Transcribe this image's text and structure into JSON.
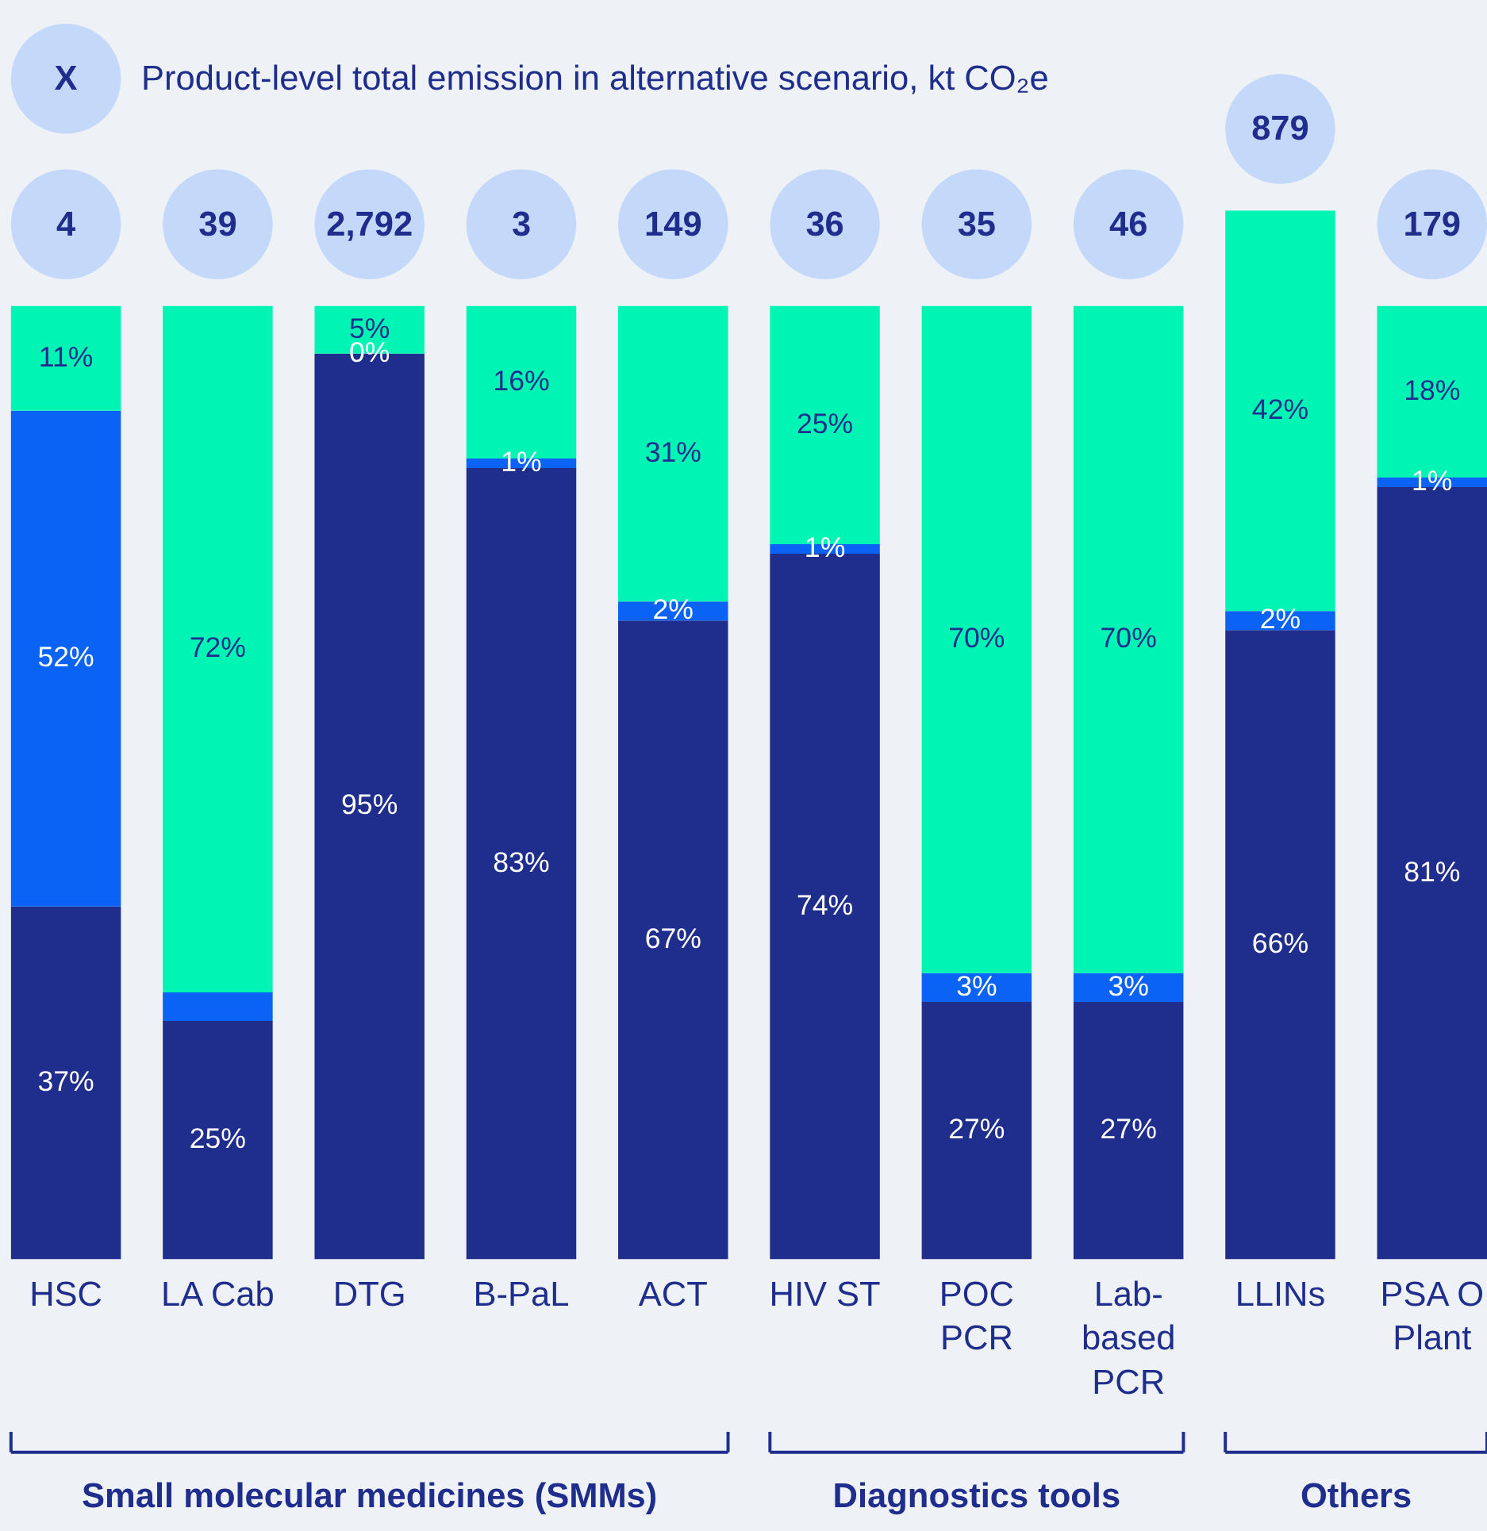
{
  "chart_data": {
    "type": "bar",
    "stacked": true,
    "categories": [
      "HSC",
      "LA Cab",
      "DTG",
      "B-PaL",
      "ACT",
      "HIV ST",
      "POC\nPCR",
      "Lab-\nbased\nPCR",
      "LLINs",
      "PSA O\nPlant"
    ],
    "series": [
      {
        "color": "#1f2d8c",
        "values": [
          37,
          25,
          95,
          83,
          67,
          74,
          27,
          27,
          66,
          81
        ],
        "value_labels": [
          "37%",
          "25%",
          "95%",
          "83%",
          "67%",
          "74%",
          "27%",
          "27%",
          "66%",
          "81%"
        ]
      },
      {
        "color": "#0a63f5",
        "values": [
          52,
          3,
          0,
          1,
          2,
          1,
          3,
          3,
          2,
          1
        ],
        "value_labels": [
          "52%",
          null,
          "0%",
          "1%",
          "2%",
          "1%",
          "3%",
          "3%",
          "2%",
          "1%"
        ]
      },
      {
        "color": "#00f5b4",
        "values": [
          11,
          72,
          5,
          16,
          31,
          25,
          70,
          70,
          42,
          18
        ],
        "value_labels": [
          "11%",
          "72%",
          "5%",
          "16%",
          "31%",
          "25%",
          "70%",
          "70%",
          "42%",
          "18%"
        ]
      }
    ],
    "ylim": [
      0,
      110
    ],
    "tick_labels": "x",
    "legend": false,
    "annotations": [
      "X",
      "Product-level total emission in alternative scenario, kt CO₂e",
      {
        "text": "4",
        "x": "HSC",
        "y": 100
      },
      {
        "text": "39",
        "x": "LA Cab",
        "y": 100
      },
      {
        "text": "2,792",
        "x": "DTG",
        "y": 100
      },
      {
        "text": "3",
        "x": "B-PaL",
        "y": 100
      },
      {
        "text": "149",
        "x": "ACT",
        "y": 100
      },
      {
        "text": "36",
        "x": "HIV ST",
        "y": 100
      },
      {
        "text": "35",
        "x": "POC\nPCR",
        "y": 100
      },
      {
        "text": "46",
        "x": "Lab-\nbased\nPCR",
        "y": 100
      },
      {
        "text": "879",
        "x": "LLINs",
        "y": 110
      },
      {
        "text": "179",
        "x": "PSA O\nPlant",
        "y": 100
      },
      "Small molecular medicines (SMMs)",
      "Diagnostics tools",
      "Others"
    ]
  }
}
